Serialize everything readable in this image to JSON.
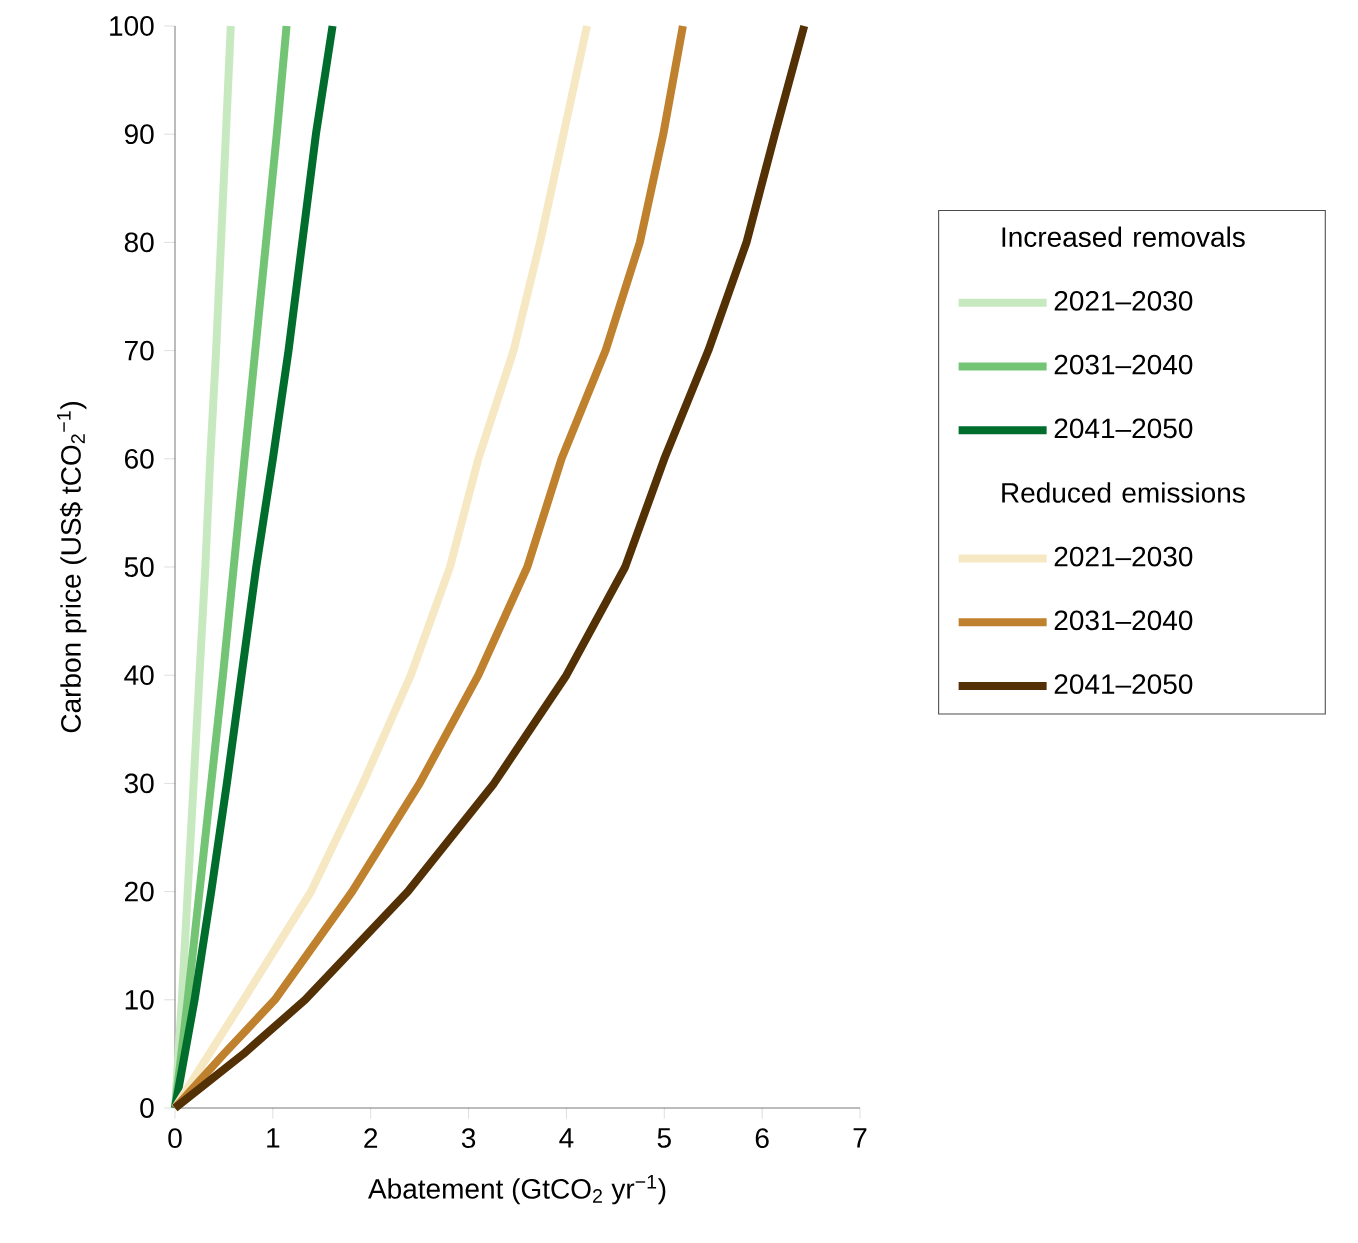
{
  "chart_data": {
    "type": "line",
    "xlabel": "Abatement (GtCO$_{2}$ yr$^{−1}$)",
    "ylabel": "Carbon price (US$ tCO$_{2}$$^{−1}$)",
    "annotations": [
      "Increased removals",
      "Reduced emissions"
    ],
    "xlim": [
      0,
      7
    ],
    "ylim": [
      0,
      100
    ],
    "xticks": [
      0,
      1,
      2,
      3,
      4,
      5,
      6,
      7
    ],
    "yticks": [
      0,
      10,
      20,
      30,
      40,
      50,
      60,
      70,
      80,
      90,
      100
    ],
    "legend": "right",
    "grid": false,
    "marker": "none",
    "line_style": "solid",
    "series": [
      {
        "name": "2021–2030",
        "color": "#c7e9c0",
        "x": [
          0,
          0.07,
          0.13,
          0.19,
          0.25,
          0.31,
          0.36,
          0.42,
          0.47,
          0.52,
          0.57
        ],
        "values": [
          0,
          10,
          20,
          30,
          40,
          50,
          60,
          70,
          80,
          90,
          100
        ]
      },
      {
        "name": "2031–2040",
        "color": "#74c476",
        "x": [
          0,
          0.13,
          0.25,
          0.37,
          0.49,
          0.6,
          0.71,
          0.82,
          0.93,
          1.04,
          1.14
        ],
        "values": [
          0,
          10,
          20,
          30,
          40,
          50,
          60,
          70,
          80,
          90,
          100
        ]
      },
      {
        "name": "2041–2050",
        "color": "#006d2c",
        "x": [
          0,
          0.2,
          0.37,
          0.53,
          0.68,
          0.83,
          1.0,
          1.16,
          1.3,
          1.44,
          1.61
        ],
        "values": [
          0,
          10,
          20,
          30,
          40,
          50,
          60,
          70,
          80,
          90,
          100
        ]
      },
      {
        "name": "2021–2030",
        "color": "#f6e8c3",
        "x": [
          0,
          0.35,
          0.7,
          1.39,
          1.92,
          2.41,
          2.81,
          3.1,
          3.46,
          3.73,
          3.97,
          4.21
        ],
        "values": [
          0,
          5,
          10,
          20,
          30,
          40,
          50,
          60,
          70,
          80,
          90,
          100
        ]
      },
      {
        "name": "2031–2040",
        "color": "#bf812d",
        "x": [
          0,
          0.5,
          1.02,
          1.81,
          2.5,
          3.1,
          3.6,
          3.95,
          4.4,
          4.75,
          4.99,
          5.19
        ],
        "values": [
          0,
          5,
          10,
          20,
          30,
          40,
          50,
          60,
          70,
          80,
          90,
          100
        ]
      },
      {
        "name": "2041–2050",
        "color": "#543005",
        "x": [
          0,
          0.7,
          1.33,
          2.38,
          3.26,
          4.0,
          4.6,
          5.0,
          5.45,
          5.84,
          6.13,
          6.43
        ],
        "values": [
          0,
          5,
          10,
          20,
          30,
          40,
          50,
          60,
          70,
          80,
          90,
          100
        ]
      }
    ]
  }
}
